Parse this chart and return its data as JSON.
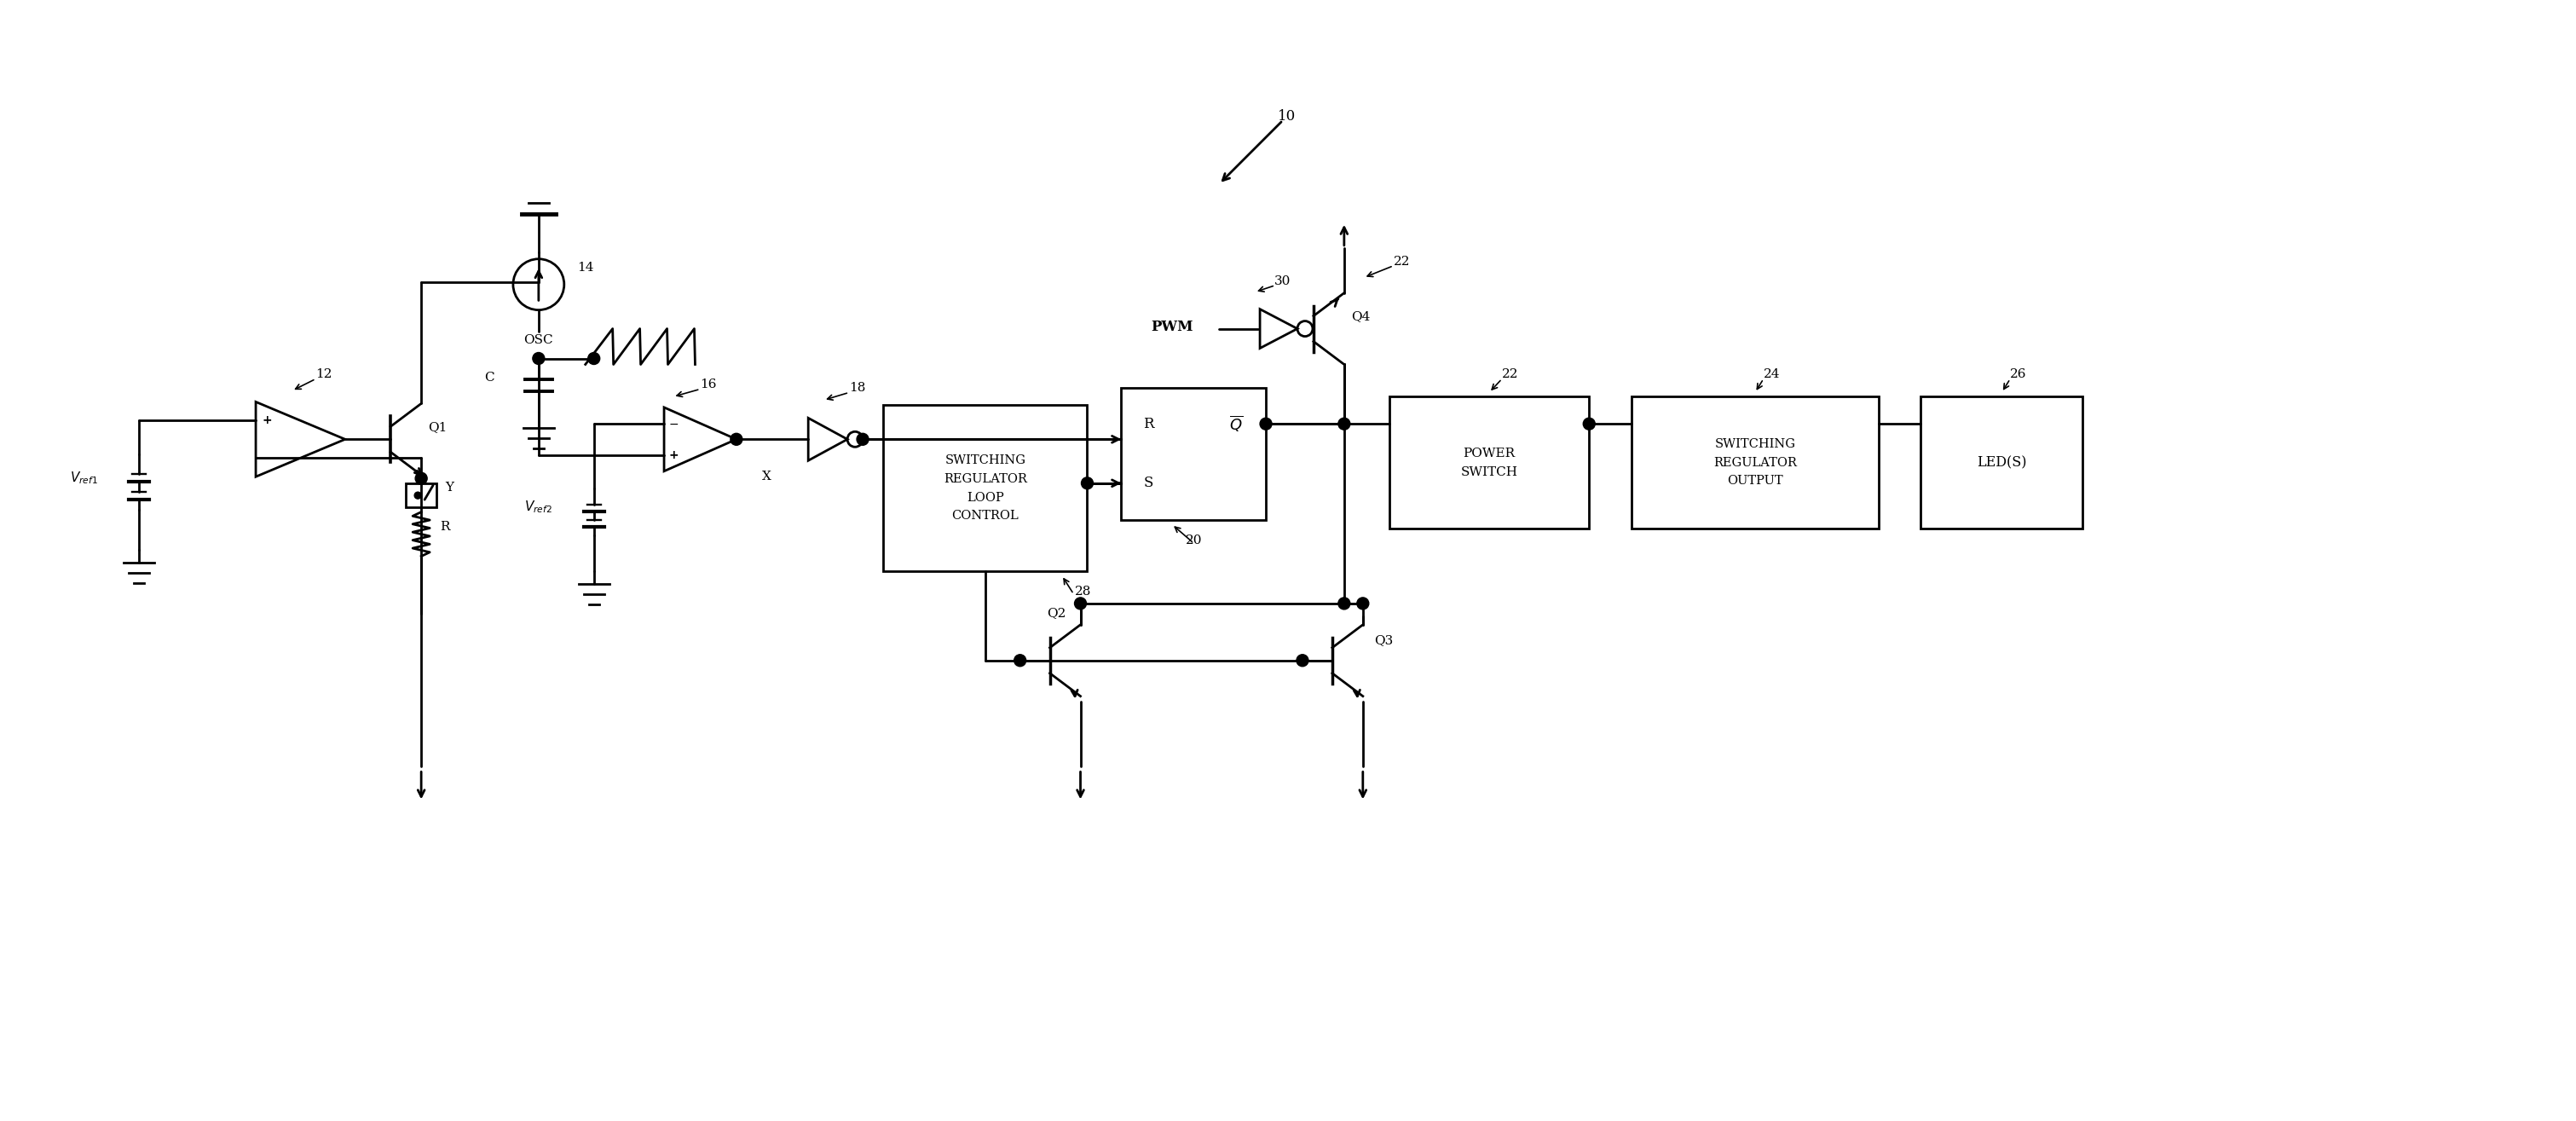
{
  "bg": "#ffffff",
  "lc": "#000000",
  "lw": 2.0,
  "fw": 30.22,
  "fh": 13.15,
  "fs": 11,
  "labels": {
    "10": "10",
    "12": "12",
    "14": "14",
    "16": "16",
    "18": "18",
    "20": "20",
    "22": "22",
    "24": "24",
    "26": "26",
    "28": "28",
    "30": "30",
    "Q1": "Q1",
    "Q2": "Q2",
    "Q3": "Q3",
    "Q4": "Q4",
    "C": "C",
    "OSC": "OSC",
    "Vref1": "$V_{ref1}$",
    "Vref2": "$V_{ref2}$",
    "X": "X",
    "Y": "Y",
    "R_label": "R",
    "PWM": "PWM",
    "SR_R": "R",
    "SR_S": "S",
    "SR_Qbar": "$\\overline{Q}$",
    "SWLC": "SWITCHING\nREGULATOR\nLOOP\nCONTROL",
    "POWER_SW": "POWER\nSWITCH",
    "SW_OUT": "SWITCHING\nREGULATOR\nOUTPUT",
    "LED": "LED(S)"
  }
}
